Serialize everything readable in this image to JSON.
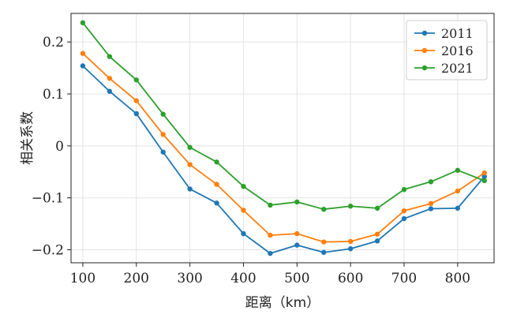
{
  "chart_data": {
    "type": "line",
    "title": "",
    "xlabel": "距离（km）",
    "ylabel": "相关系数",
    "xlim": [
      78,
      868
    ],
    "ylim": [
      -0.225,
      0.255
    ],
    "x_ticks": [
      100,
      200,
      300,
      400,
      500,
      600,
      700,
      800
    ],
    "x_tick_labels": [
      "100",
      "200",
      "300",
      "400",
      "500",
      "600",
      "700",
      "800"
    ],
    "y_ticks": [
      0.2,
      0.1,
      0,
      -0.1,
      -0.2
    ],
    "y_tick_labels": [
      "0.2",
      "0.1",
      "0",
      "−0.1",
      "−0.2"
    ],
    "grid": true,
    "legend_position": "top-right",
    "x": [
      100,
      150,
      200,
      250,
      300,
      350,
      400,
      450,
      500,
      550,
      600,
      650,
      700,
      750,
      800,
      850
    ],
    "series": [
      {
        "name": "2011",
        "color": "#1f77b4",
        "values": [
          0.154,
          0.105,
          0.062,
          -0.012,
          -0.083,
          -0.11,
          -0.169,
          -0.207,
          -0.191,
          -0.205,
          -0.198,
          -0.183,
          -0.14,
          -0.121,
          -0.12,
          -0.059
        ]
      },
      {
        "name": "2016",
        "color": "#ff7f0e",
        "values": [
          0.178,
          0.13,
          0.087,
          0.022,
          -0.036,
          -0.074,
          -0.124,
          -0.172,
          -0.169,
          -0.185,
          -0.184,
          -0.17,
          -0.125,
          -0.111,
          -0.087,
          -0.052
        ]
      },
      {
        "name": "2021",
        "color": "#2ca02c",
        "values": [
          0.237,
          0.172,
          0.127,
          0.061,
          -0.003,
          -0.031,
          -0.078,
          -0.114,
          -0.108,
          -0.122,
          -0.116,
          -0.12,
          -0.084,
          -0.069,
          -0.047,
          -0.067
        ]
      }
    ]
  }
}
